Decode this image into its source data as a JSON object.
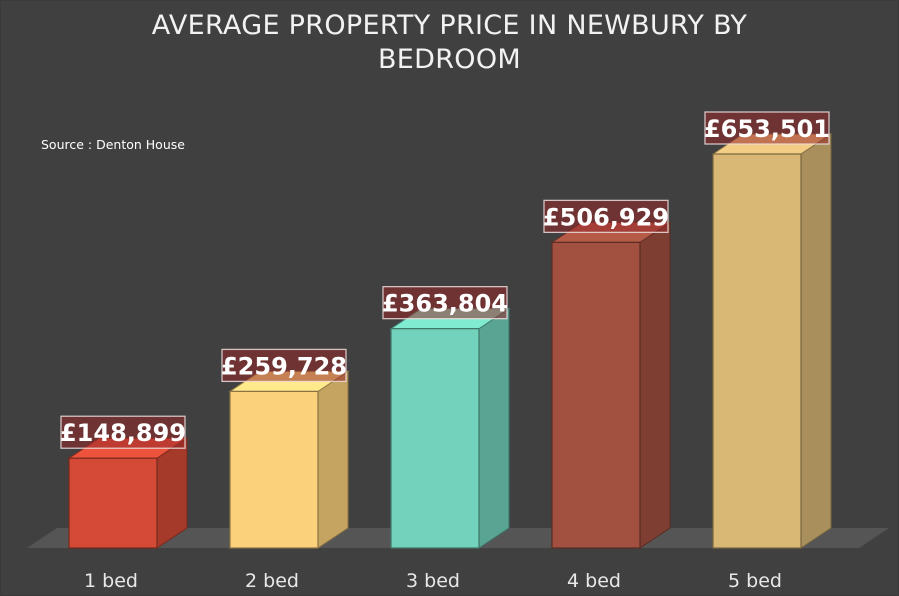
{
  "title": "AVERAGE PROPERTY PRICE IN NEWBURY BY BEDROOM",
  "source": "Source : Denton House",
  "chart_data": {
    "type": "bar",
    "title": "AVERAGE PROPERTY PRICE IN NEWBURY BY BEDROOM",
    "xlabel": "",
    "ylabel": "",
    "categories": [
      "1 bed",
      "2 bed",
      "3 bed",
      "4 bed",
      "5 bed"
    ],
    "values": [
      148899,
      259728,
      363804,
      506929,
      653501
    ],
    "data_labels": [
      "£148,899",
      "£259,728",
      "£363,804",
      "£506,929",
      "£653,501"
    ],
    "colors": [
      "#d44a36",
      "#fcd17c",
      "#72d2bb",
      "#a2503f",
      "#d9b775"
    ],
    "ylim": [
      0,
      660000
    ],
    "grid": false,
    "legend": "none",
    "style": "3d-column"
  }
}
